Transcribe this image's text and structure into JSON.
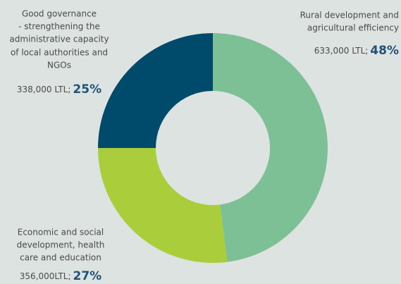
{
  "chart_data": {
    "type": "pie",
    "donut": true,
    "categories": [
      [
        "Rural development and",
        "agricultural efficiency"
      ],
      [
        "Economic and social",
        "development, health",
        "care and education"
      ],
      [
        "Good governance",
        "- strengthening the",
        "administrative capacity",
        "of local authorities and",
        "NGOs"
      ]
    ],
    "values": [
      48,
      27,
      25
    ],
    "value_labels": [
      "48%",
      "27%",
      "25%"
    ],
    "amount_labels": [
      "633,000 LTL;",
      "356,000LTL;",
      "338,000 LTL;"
    ],
    "colors": [
      "#7dc095",
      "#a9cd3b",
      "#004a6b"
    ]
  }
}
